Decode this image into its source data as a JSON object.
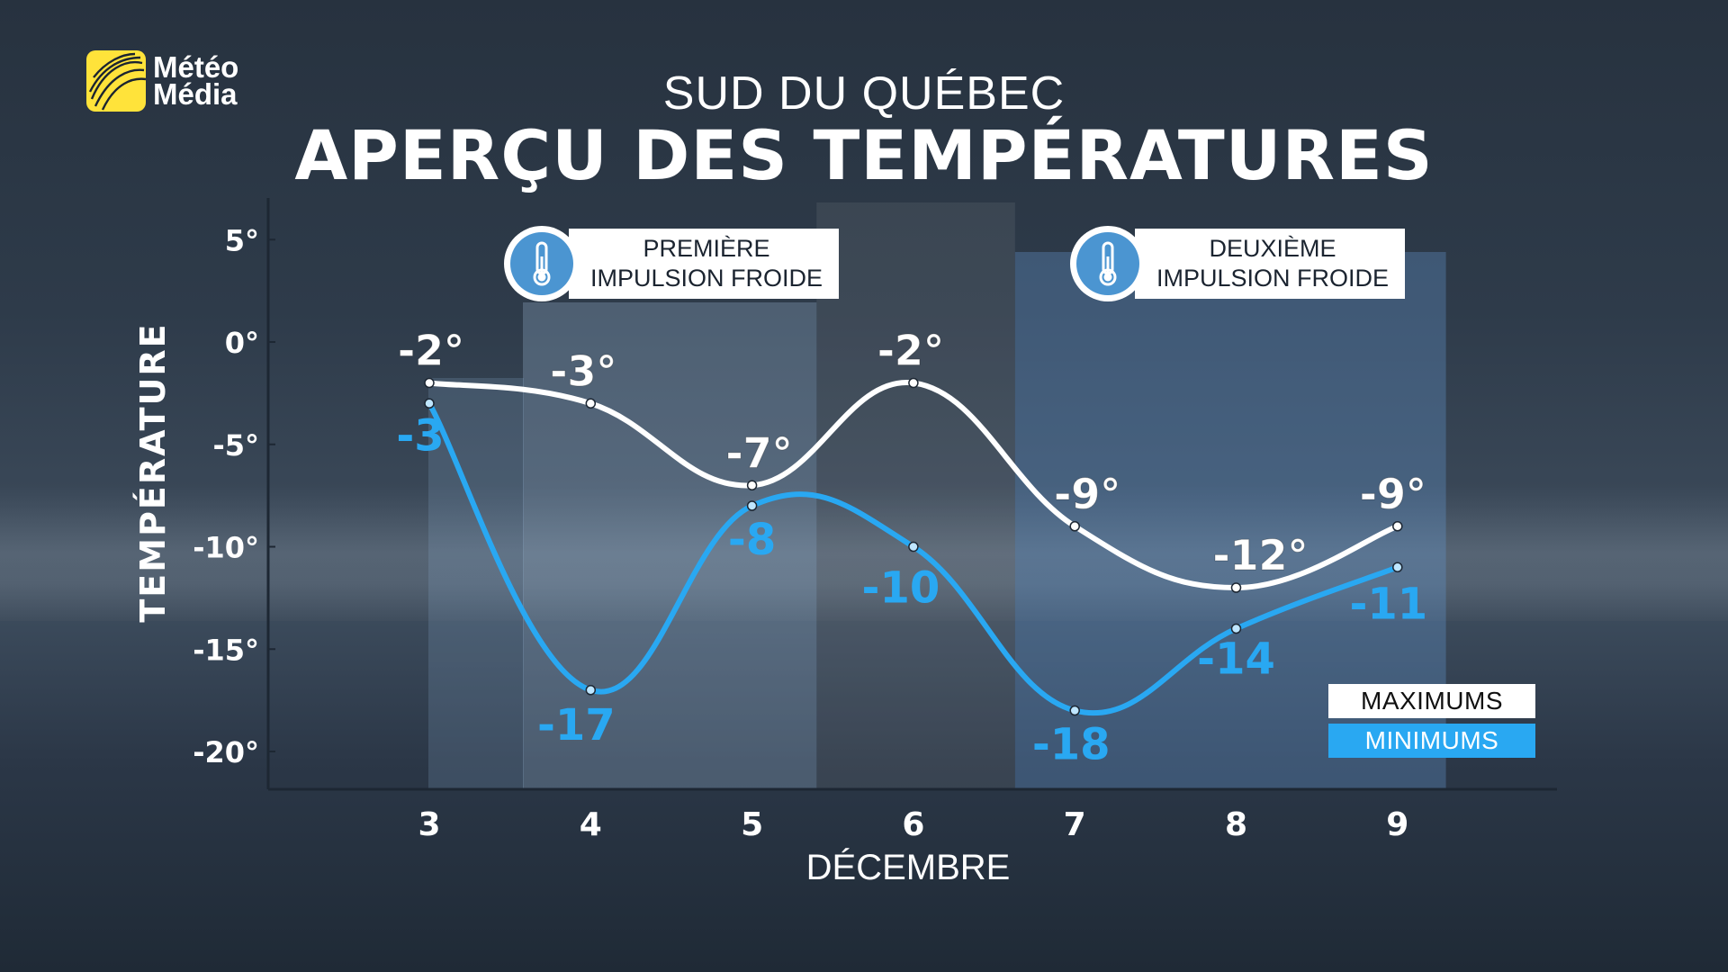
{
  "brand": {
    "line1": "Météo",
    "line2": "Média"
  },
  "header": {
    "region": "SUD DU QUÉBEC",
    "title": "APERÇU DES TEMPÉRATURES"
  },
  "callouts": [
    {
      "line1": "PREMIÈRE",
      "line2": "IMPULSION FROIDE",
      "icon": "thermometer-icon"
    },
    {
      "line1": "DEUXIÈME",
      "line2": "IMPULSION FROIDE",
      "icon": "thermometer-icon"
    }
  ],
  "legend": {
    "max_label": "MAXIMUMS",
    "min_label": "MINIMUMS"
  },
  "colors": {
    "max_line": "#ffffff",
    "min_line": "#29a8f2",
    "logo": "#ffe33a"
  },
  "chart_data": {
    "type": "line",
    "xlabel": "DÉCEMBRE",
    "ylabel": "TEMPÉRATURE",
    "categories": [
      "3",
      "4",
      "5",
      "6",
      "7",
      "8",
      "9"
    ],
    "ylim": [
      -22,
      7
    ],
    "yticks": [
      5,
      0,
      -5,
      -10,
      -15,
      -20
    ],
    "ytick_labels": [
      "5°",
      "0°",
      "-5°",
      "-10°",
      "-15°",
      "-20°"
    ],
    "series": [
      {
        "name": "MAXIMUMS",
        "values": [
          -2,
          -3,
          -7,
          -2,
          -9,
          -12,
          -9
        ],
        "labels": [
          "-2°",
          "-3°",
          "-7°",
          "-2°",
          "-9°",
          "-12°",
          "-9°"
        ]
      },
      {
        "name": "MINIMUMS",
        "values": [
          -3,
          -17,
          -8,
          -10,
          -18,
          -14,
          -11
        ],
        "labels": [
          "-3",
          "-17",
          "-8",
          "-10",
          "-18",
          "-14",
          "-11"
        ]
      }
    ],
    "highlighted_ranges": [
      {
        "label": "PREMIÈRE IMPULSION FROIDE",
        "from": "4",
        "to": "5"
      },
      {
        "label": "DEUXIÈME IMPULSION FROIDE",
        "from": "7",
        "to": "9"
      }
    ]
  }
}
